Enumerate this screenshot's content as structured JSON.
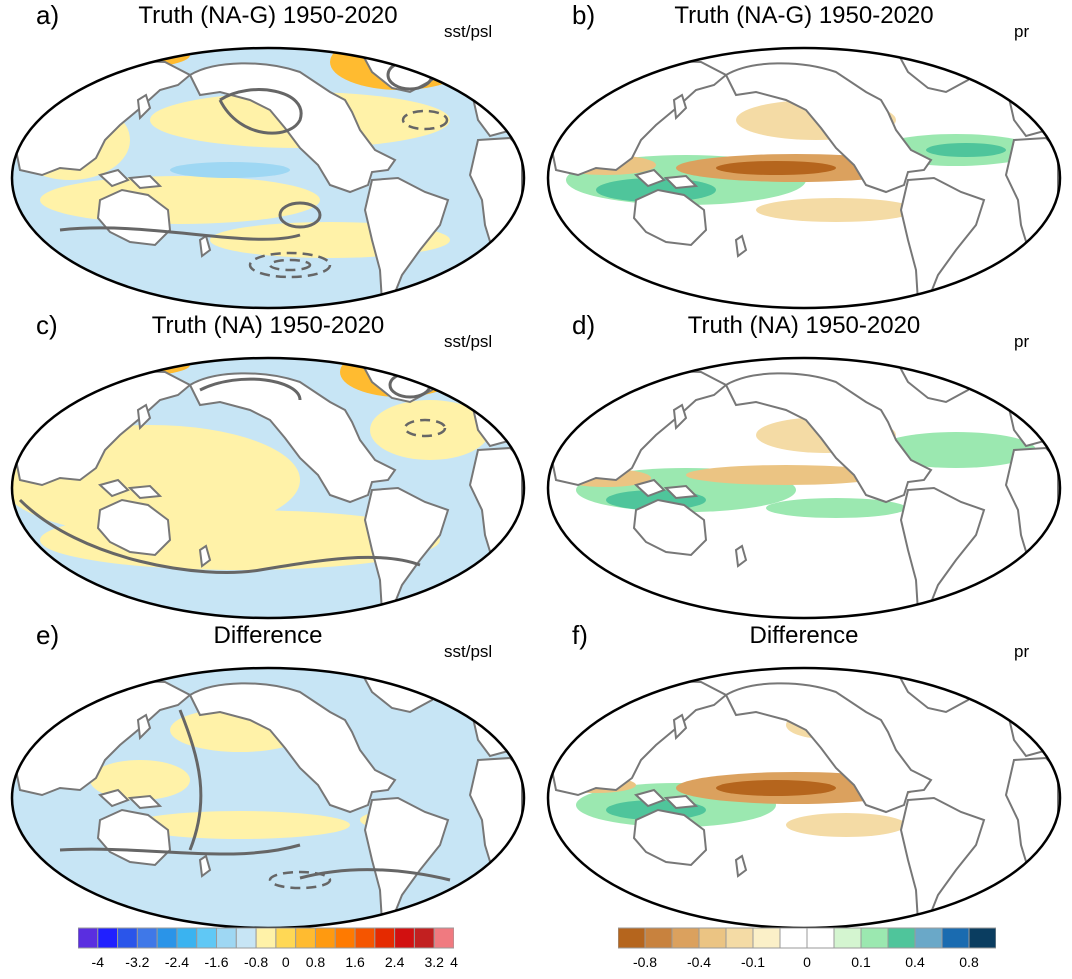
{
  "panels": [
    {
      "label": "a)",
      "title": "Truth (NA-G) 1950-2020",
      "variable": "sst/psl"
    },
    {
      "label": "b)",
      "title": "Truth (NA-G) 1950-2020",
      "variable": "pr"
    },
    {
      "label": "c)",
      "title": "Truth (NA) 1950-2020",
      "variable": "sst/psl"
    },
    {
      "label": "d)",
      "title": "Truth (NA) 1950-2020",
      "variable": "pr"
    },
    {
      "label": "e)",
      "title": "Difference",
      "variable": "sst/psl"
    },
    {
      "label": "f)",
      "title": "Difference",
      "variable": "pr"
    }
  ],
  "colorbar_sst": {
    "colors": [
      "#5a2ee0",
      "#2020ff",
      "#2a55ea",
      "#3f78e8",
      "#2a94e8",
      "#3ab3f0",
      "#60c8f5",
      "#9ed7f3",
      "#c7e5f5",
      "#fff2a8",
      "#ffd855",
      "#ffbb30",
      "#ff9a10",
      "#ff7a00",
      "#f55500",
      "#e52a00",
      "#d21010",
      "#c22020",
      "#f07a80"
    ],
    "ticks": [
      "-4",
      "-3.2",
      "-2.4",
      "-1.6",
      "-0.8",
      "0",
      "0.8",
      "1.6",
      "2.4",
      "3.2",
      "4"
    ]
  },
  "colorbar_pr": {
    "colors": [
      "#b5651d",
      "#c8823e",
      "#dba15e",
      "#ebc483",
      "#f4dba5",
      "#fbf0c8",
      "#ffffff",
      "#ffffff",
      "#d4f5d0",
      "#9be8b0",
      "#4fc59b",
      "#6aa8c8",
      "#1a6bb0",
      "#0a3d60"
    ],
    "ticks": [
      "-0.8",
      "-0.4",
      "-0.1",
      "0",
      "0.1",
      "0.4",
      "0.8"
    ]
  },
  "colors": {
    "sea_sst": "#c7e5f5",
    "warm_sst": "#fff2a8",
    "land_outline": "#777777",
    "contour": "#666666",
    "dry": "#dba15e",
    "wet": "#4fc59b"
  }
}
